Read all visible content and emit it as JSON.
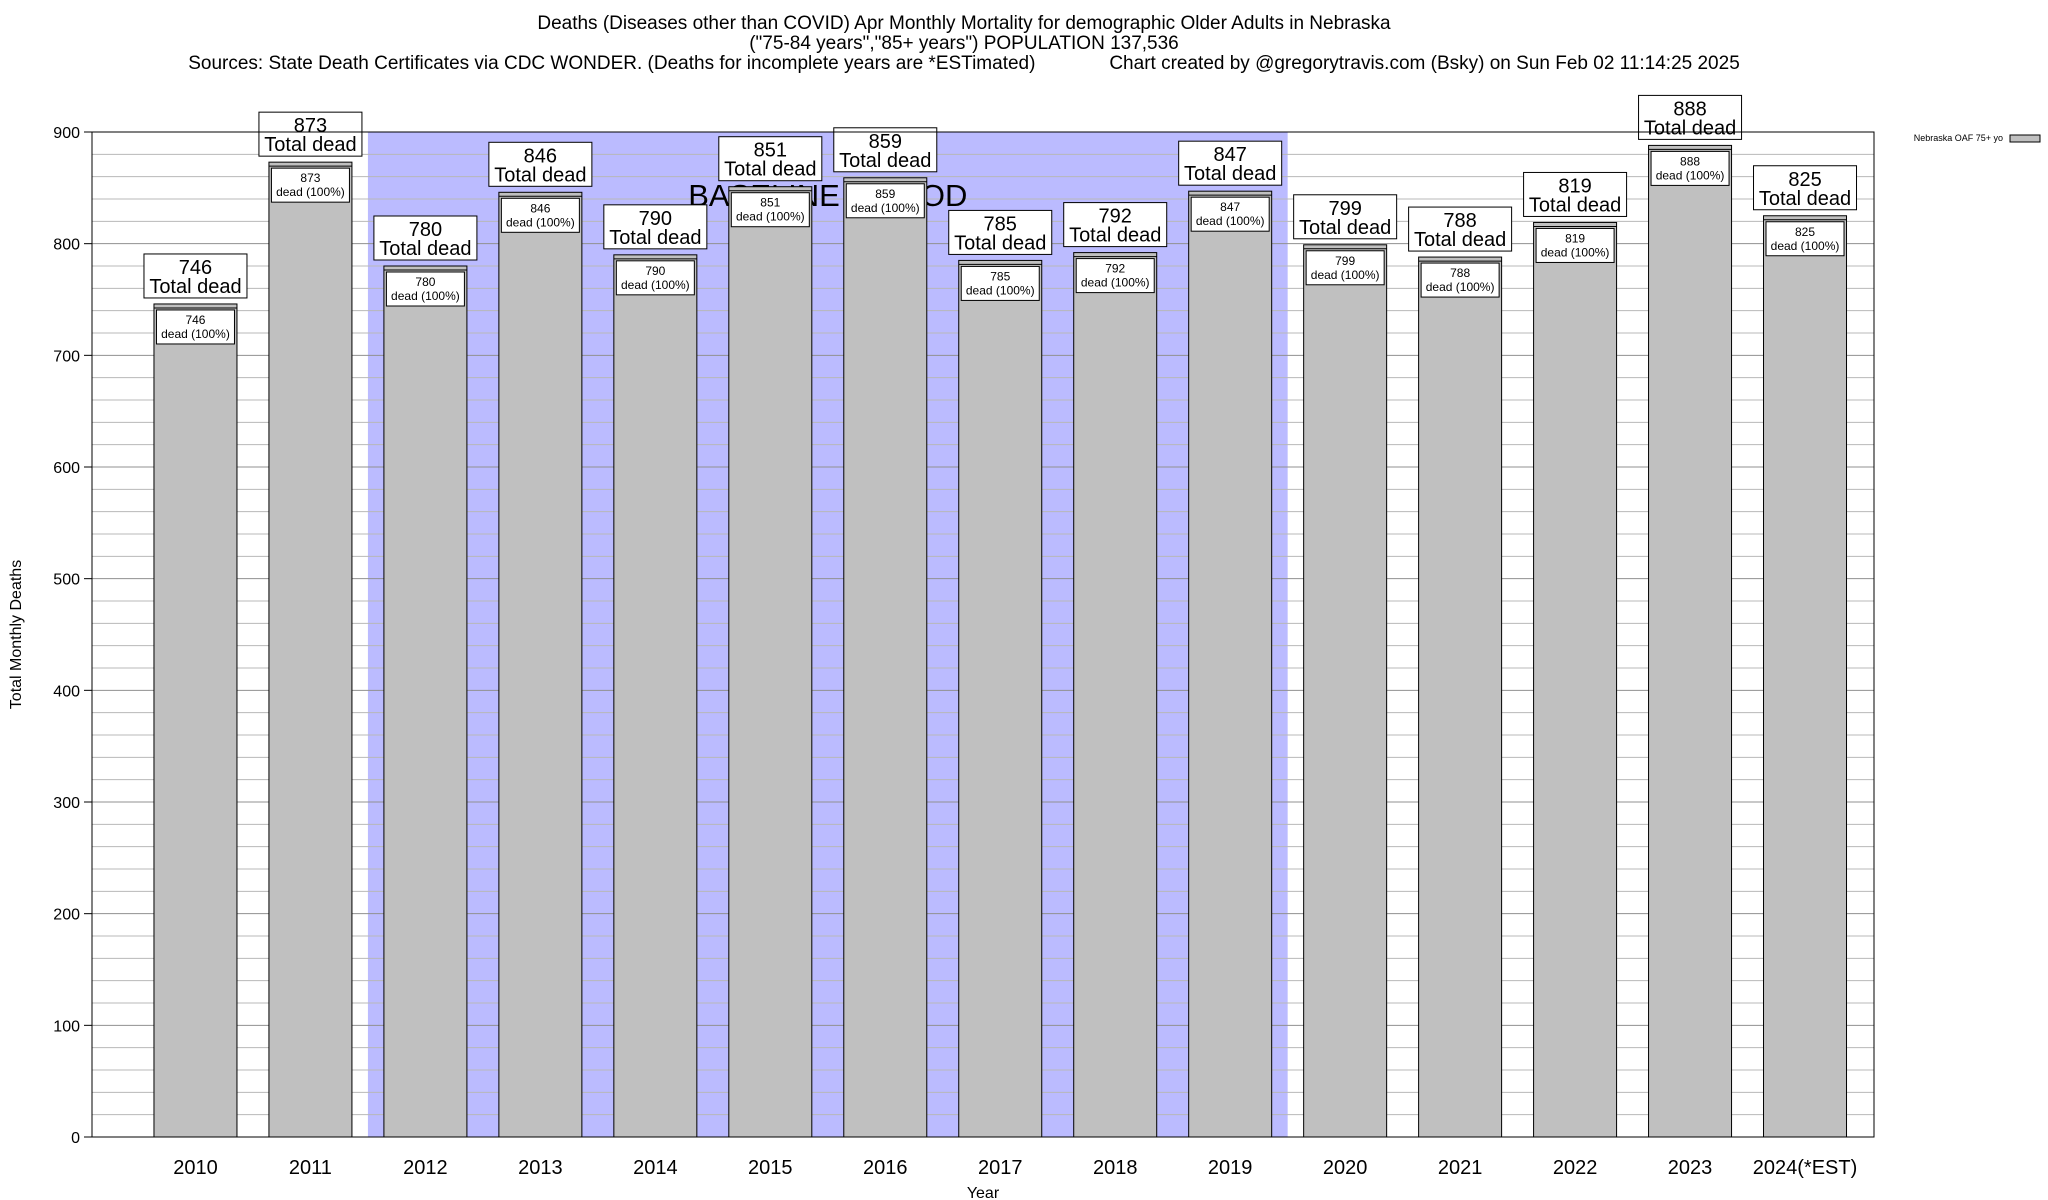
{
  "title": {
    "line1": "Deaths (Diseases other than COVID) Apr Monthly Mortality for demographic Older Adults in Nebraska",
    "line2": "(\"75-84 years\",\"85+ years\") POPULATION 137,536",
    "line3": "Sources: State Death Certificates via CDC WONDER. (Deaths for incomplete years are *ESTimated)              Chart created by @gregorytravis.com (Bsky) on Sun Feb 02 11:14:25 2025"
  },
  "chart_data": {
    "type": "bar",
    "categories": [
      "2010",
      "2011",
      "2012",
      "2013",
      "2014",
      "2015",
      "2016",
      "2017",
      "2018",
      "2019",
      "2020",
      "2021",
      "2022",
      "2023",
      "2024(*EST)"
    ],
    "series": [
      {
        "name": "Nebraska OAF 75+ yo",
        "values": [
          746,
          873,
          780,
          846,
          790,
          851,
          859,
          785,
          792,
          847,
          799,
          788,
          819,
          888,
          825
        ]
      }
    ],
    "xlabel": "Year",
    "ylabel": "Total Monthly Deaths",
    "ylim": [
      0,
      900
    ],
    "yticks": [
      0,
      100,
      200,
      300,
      400,
      500,
      600,
      700,
      800,
      900
    ],
    "grid": true,
    "legend_position": "top-right",
    "baseline_period": {
      "label": "BASELINE PERIOD",
      "start": "2012",
      "end": "2019"
    },
    "bar_label_line2": "Total dead",
    "inner_label_suffix": "dead (100%)",
    "colors": {
      "bar": "#c0c0c0",
      "baseline": "#bbbbff",
      "grid": "#a0a0a0"
    }
  }
}
